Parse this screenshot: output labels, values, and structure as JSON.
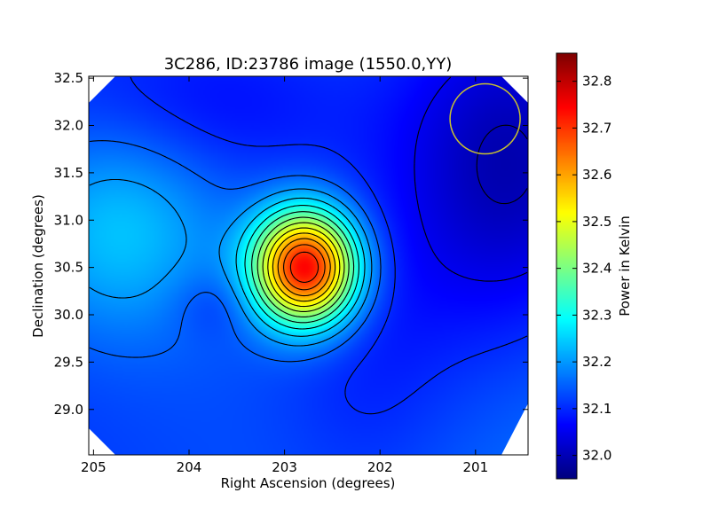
{
  "chart_data": {
    "type": "heatmap",
    "title": "3C286, ID:23786 image (1550.0,YY)",
    "xlabel": "Right Ascension (degrees)",
    "ylabel": "Declination (degrees)",
    "colorbar_label": "Power in Kelvin",
    "x_axis_inverted": true,
    "xlim": [
      205.05,
      200.45
    ],
    "ylim": [
      28.52,
      32.52
    ],
    "x_ticks": [
      205,
      204,
      203,
      202,
      201
    ],
    "x_tick_labels": [
      "205",
      "204",
      "203",
      "202",
      "201"
    ],
    "y_ticks": [
      29.0,
      29.5,
      30.0,
      30.5,
      31.0,
      31.5,
      32.0,
      32.5
    ],
    "y_tick_labels": [
      "29.0",
      "29.5",
      "30.0",
      "30.5",
      "31.0",
      "31.5",
      "32.0",
      "32.5"
    ],
    "colorbar_range": [
      31.95,
      32.86
    ],
    "colorbar_ticks": [
      32.0,
      32.1,
      32.2,
      32.3,
      32.4,
      32.5,
      32.6,
      32.7,
      32.8
    ],
    "colorbar_tick_labels": [
      "32.0",
      "32.1",
      "32.2",
      "32.3",
      "32.4",
      "32.5",
      "32.6",
      "32.7",
      "32.8"
    ],
    "colormap": "jet",
    "peak": {
      "ra": 202.78,
      "dec": 30.5,
      "value": 32.86
    },
    "secondary_peak": {
      "ra": 204.75,
      "dec": 30.9,
      "value": 32.3
    },
    "local_minimum": {
      "ra": 203.75,
      "dec": 30.1,
      "value": 32.2
    },
    "beam_circle": {
      "ra": 200.9,
      "dec": 32.07,
      "radius_deg": 0.37,
      "color": "#c8c030"
    },
    "contour_levels": [
      32.0,
      32.05,
      32.1,
      32.15,
      32.2,
      32.25,
      32.3,
      32.35,
      32.4,
      32.45,
      32.5,
      32.55,
      32.6,
      32.65,
      32.7,
      32.75,
      32.8
    ]
  }
}
